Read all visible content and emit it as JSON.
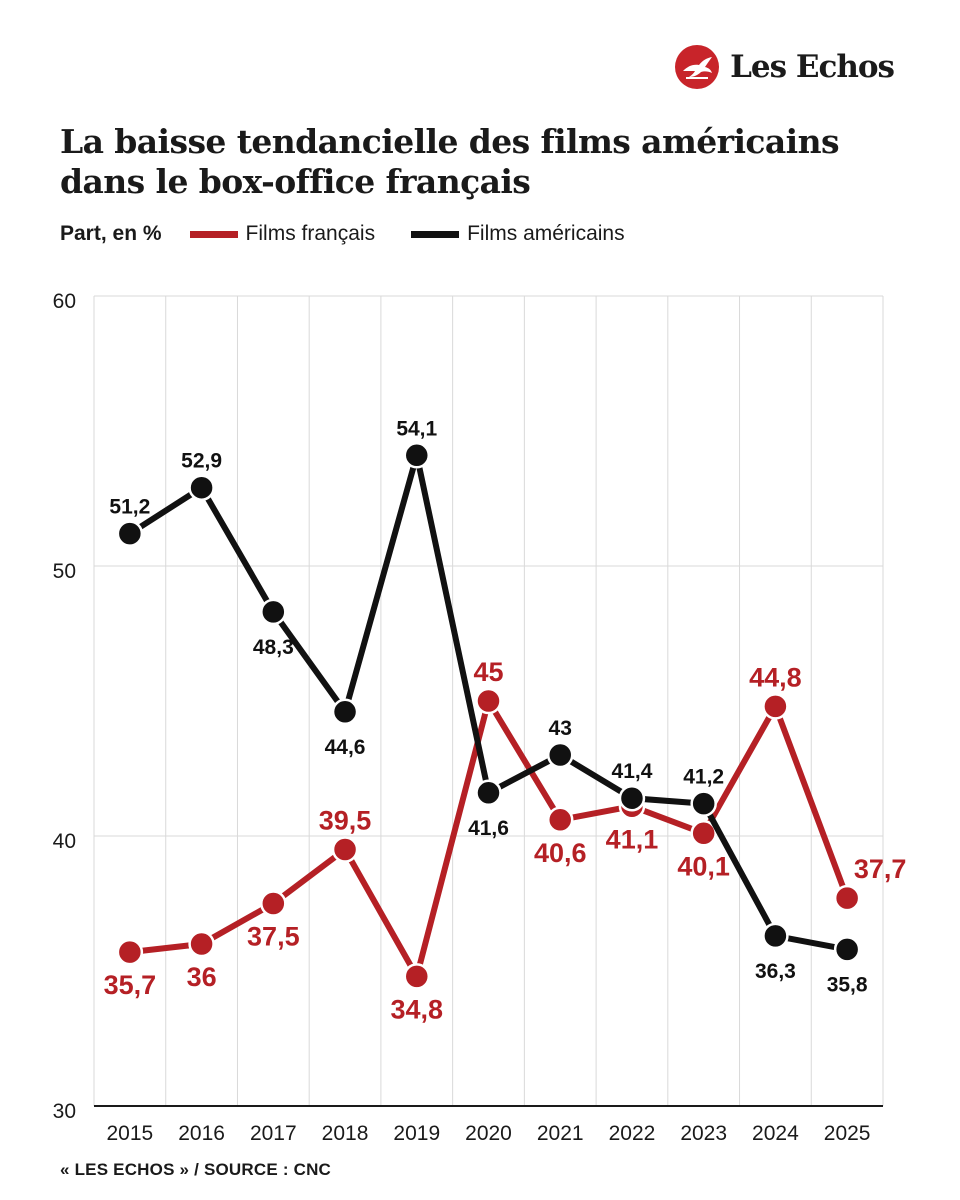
{
  "brand": {
    "name": "Les Echos"
  },
  "colors": {
    "french": "#b52025",
    "american": "#111111",
    "grid": "#d9d9d9",
    "brand_red": "#c8242a"
  },
  "chart_data": {
    "type": "line",
    "title": "La baisse tendancielle des films américains dans le box-office français",
    "ylabel": "Part, en %",
    "x": [
      "2015",
      "2016",
      "2017",
      "2018",
      "2019",
      "2020",
      "2021",
      "2022",
      "2023",
      "2024",
      "2025"
    ],
    "yticks": [
      "30",
      "40",
      "50",
      "60"
    ],
    "ylim": [
      30,
      60
    ],
    "grid": true,
    "legend": "top-left",
    "series": [
      {
        "name": "Films français",
        "values": [
          35.7,
          36,
          37.5,
          39.5,
          34.8,
          45,
          40.6,
          41.1,
          40.1,
          44.8,
          37.7
        ],
        "labels": [
          "35,7",
          "36",
          "37,5",
          "39,5",
          "34,8",
          "45",
          "40,6",
          "41,1",
          "40,1",
          "44,8",
          "37,7"
        ]
      },
      {
        "name": "Films américains",
        "values": [
          51.2,
          52.9,
          48.3,
          44.6,
          54.1,
          41.6,
          43,
          41.4,
          41.2,
          36.3,
          35.8
        ],
        "labels": [
          "51,2",
          "52,9",
          "48,3",
          "44,6",
          "54,1",
          "41,6",
          "43",
          "41,4",
          "41,2",
          "36,3",
          "35,8"
        ]
      }
    ]
  },
  "source": "« LES ECHOS » / SOURCE : CNC"
}
